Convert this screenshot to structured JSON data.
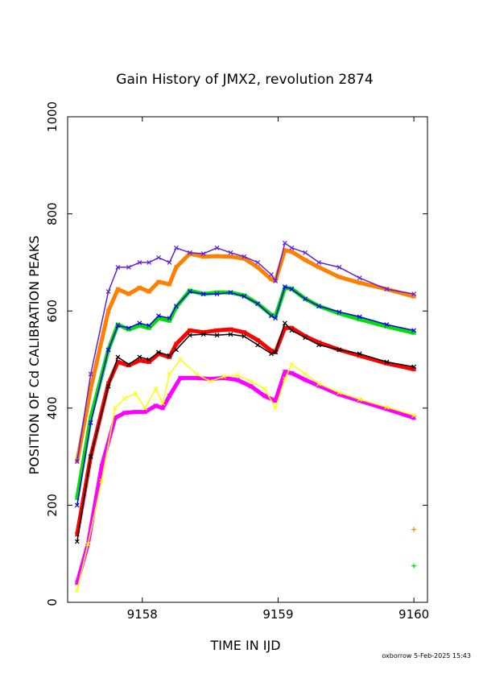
{
  "chart_data": {
    "type": "scatter",
    "title": "Gain History of JMX2, revolution 2874",
    "xlabel": "TIME IN IJD",
    "ylabel": "POSITION OF Cd CALIBRATION PEAKS",
    "xlim": [
      9157.45,
      9160.1
    ],
    "ylim": [
      0,
      1000
    ],
    "x_ticks": [
      9158,
      9159,
      9160
    ],
    "y_ticks": [
      0,
      200,
      400,
      600,
      800,
      1000
    ],
    "x_tick_labels": [
      "9158",
      "9159",
      "9160"
    ],
    "y_tick_labels": [
      "0",
      "200",
      "400",
      "600",
      "800",
      "1000"
    ],
    "grid": false,
    "footer": "oxborrow  5-Feb-2025 15:43",
    "series": [
      {
        "color": "#ff7f00",
        "x": [
          9157.52,
          9157.62,
          9157.75,
          9157.82,
          9157.9,
          9157.98,
          9158.05,
          9158.12,
          9158.2,
          9158.25,
          9158.35,
          9158.45,
          9158.55,
          9158.65,
          9158.75,
          9158.85,
          9158.95,
          9158.98,
          9159.05,
          9159.1,
          9159.2,
          9159.3,
          9159.45,
          9159.6,
          9159.8,
          9160.0
        ],
        "y": [
          290,
          440,
          600,
          645,
          635,
          648,
          640,
          660,
          655,
          690,
          718,
          712,
          713,
          712,
          708,
          690,
          665,
          662,
          725,
          722,
          705,
          690,
          670,
          658,
          645,
          630
        ]
      },
      {
        "color": "#00e000",
        "x": [
          9157.52,
          9157.62,
          9157.75,
          9157.82,
          9157.9,
          9157.98,
          9158.05,
          9158.12,
          9158.2,
          9158.25,
          9158.35,
          9158.45,
          9158.55,
          9158.65,
          9158.75,
          9158.85,
          9158.95,
          9158.98,
          9159.05,
          9159.1,
          9159.2,
          9159.3,
          9159.45,
          9159.6,
          9159.8,
          9160.0
        ],
        "y": [
          215,
          380,
          520,
          572,
          562,
          570,
          565,
          585,
          580,
          608,
          642,
          635,
          638,
          638,
          632,
          615,
          592,
          588,
          648,
          646,
          625,
          610,
          595,
          583,
          568,
          555
        ]
      },
      {
        "color": "#ff0000",
        "x": [
          9157.52,
          9157.62,
          9157.75,
          9157.82,
          9157.9,
          9157.98,
          9158.05,
          9158.12,
          9158.2,
          9158.25,
          9158.35,
          9158.45,
          9158.55,
          9158.65,
          9158.75,
          9158.85,
          9158.95,
          9158.98,
          9159.05,
          9159.1,
          9159.2,
          9159.3,
          9159.45,
          9159.6,
          9159.8,
          9160.0
        ],
        "y": [
          140,
          300,
          450,
          495,
          488,
          498,
          495,
          512,
          505,
          532,
          560,
          556,
          560,
          562,
          556,
          540,
          518,
          515,
          565,
          565,
          548,
          535,
          520,
          508,
          492,
          480
        ]
      },
      {
        "color": "#ff00ff",
        "x": [
          9157.52,
          9157.6,
          9157.7,
          9157.8,
          9157.87,
          9157.95,
          9158.02,
          9158.1,
          9158.15,
          9158.2,
          9158.28,
          9158.4,
          9158.5,
          9158.6,
          9158.7,
          9158.8,
          9158.9,
          9158.98,
          9159.05,
          9159.1,
          9159.2,
          9159.3,
          9159.45,
          9159.6,
          9159.8,
          9160.0
        ],
        "y": [
          40,
          120,
          280,
          380,
          390,
          392,
          392,
          405,
          400,
          425,
          462,
          462,
          460,
          462,
          458,
          445,
          425,
          415,
          475,
          472,
          458,
          446,
          428,
          415,
          398,
          380
        ]
      },
      {
        "color": "#6020e0",
        "x": [
          9157.52,
          9157.62,
          9157.75,
          9157.82,
          9157.9,
          9157.98,
          9158.05,
          9158.12,
          9158.2,
          9158.25,
          9158.35,
          9158.45,
          9158.55,
          9158.65,
          9158.75,
          9158.85,
          9158.95,
          9158.98,
          9159.05,
          9159.1,
          9159.2,
          9159.3,
          9159.45,
          9159.6,
          9159.8,
          9160.0
        ],
        "y": [
          290,
          470,
          640,
          690,
          690,
          700,
          700,
          710,
          700,
          730,
          720,
          718,
          730,
          720,
          712,
          700,
          675,
          662,
          740,
          730,
          720,
          700,
          690,
          668,
          645,
          635
        ]
      },
      {
        "color": "#0000ff",
        "x": [
          9157.52,
          9157.62,
          9157.75,
          9157.82,
          9157.9,
          9157.98,
          9158.05,
          9158.12,
          9158.2,
          9158.25,
          9158.35,
          9158.45,
          9158.55,
          9158.65,
          9158.75,
          9158.85,
          9158.95,
          9158.98,
          9159.05,
          9159.1,
          9159.2,
          9159.3,
          9159.45,
          9159.6,
          9159.8,
          9160.0
        ],
        "y": [
          200,
          370,
          520,
          570,
          565,
          575,
          570,
          590,
          585,
          610,
          640,
          635,
          635,
          638,
          630,
          615,
          590,
          585,
          650,
          645,
          625,
          610,
          598,
          588,
          572,
          560
        ]
      },
      {
        "color": "#000000",
        "x": [
          9157.52,
          9157.62,
          9157.75,
          9157.82,
          9157.9,
          9157.98,
          9158.05,
          9158.12,
          9158.2,
          9158.25,
          9158.35,
          9158.45,
          9158.55,
          9158.65,
          9158.75,
          9158.85,
          9158.95,
          9158.98,
          9159.05,
          9159.1,
          9159.2,
          9159.3,
          9159.45,
          9159.6,
          9159.8,
          9160.0
        ],
        "y": [
          125,
          300,
          445,
          505,
          490,
          505,
          500,
          515,
          508,
          520,
          550,
          552,
          550,
          552,
          548,
          530,
          512,
          515,
          575,
          560,
          545,
          530,
          520,
          512,
          495,
          485
        ]
      },
      {
        "color": "#ffff00",
        "x": [
          9157.52,
          9157.6,
          9157.7,
          9157.8,
          9157.87,
          9157.95,
          9158.02,
          9158.1,
          9158.15,
          9158.2,
          9158.28,
          9158.4,
          9158.5,
          9158.6,
          9158.7,
          9158.8,
          9158.9,
          9158.98,
          9159.05,
          9159.1,
          9159.2,
          9159.3,
          9159.45,
          9159.6,
          9159.8,
          9160.0
        ],
        "y": [
          25,
          120,
          250,
          400,
          420,
          430,
          400,
          440,
          410,
          470,
          500,
          470,
          455,
          465,
          468,
          455,
          440,
          400,
          460,
          490,
          470,
          450,
          432,
          418,
          402,
          385
        ]
      },
      {
        "color": "#ff7f00",
        "x": [
          9160.0
        ],
        "y": [
          150
        ]
      },
      {
        "color": "#00e000",
        "x": [
          9160.0
        ],
        "y": [
          75
        ]
      }
    ]
  }
}
